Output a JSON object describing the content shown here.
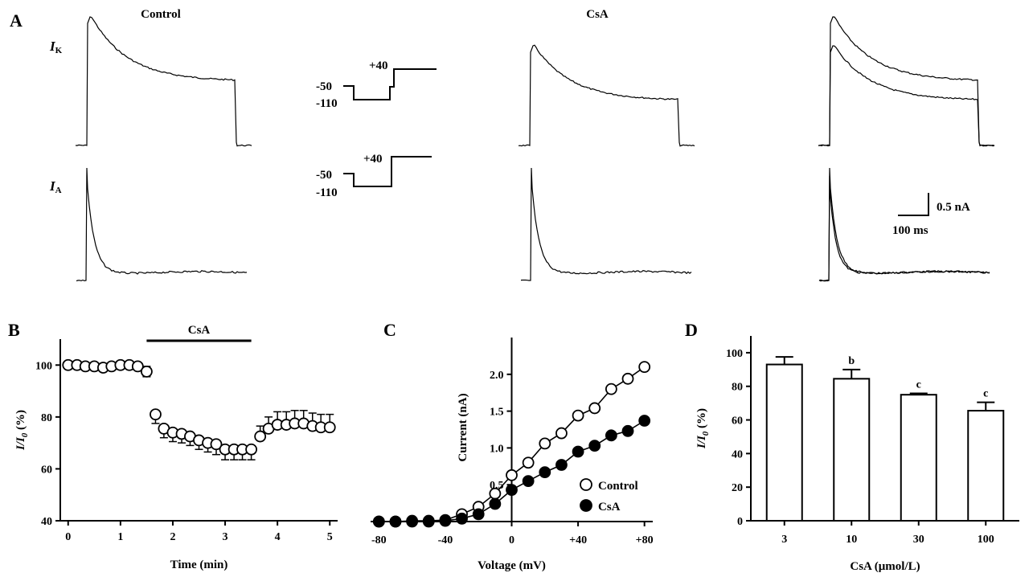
{
  "panels": {
    "A": {
      "letter": "A",
      "control_label": "Control",
      "drug_label": "CsA",
      "ik_label_main": "I",
      "ik_label_sub": "K",
      "ia_label_main": "I",
      "ia_label_sub": "A",
      "protocol_ik": {
        "hold": "-50",
        "pre": "-110",
        "test": "+40"
      },
      "protocol_ia": {
        "hold": "-50",
        "pre": "-110",
        "test": "+40"
      },
      "scale_current": "0.5 nA",
      "scale_time": "100 ms"
    },
    "B": {
      "letter": "B",
      "bar_label": "CsA"
    },
    "C": {
      "letter": "C"
    },
    "D": {
      "letter": "D"
    }
  },
  "chart_data": [
    {
      "panel": "B",
      "type": "scatter",
      "xlabel": "Time (min)",
      "ylabel_main": "I/I",
      "ylabel_sub": "0",
      "ylabel_unit": " (%)",
      "xlim": [
        -0.15,
        5.15
      ],
      "ylim": [
        40,
        110
      ],
      "xticks": [
        0,
        1,
        2,
        3,
        4,
        5
      ],
      "yticks": [
        40,
        60,
        80,
        100
      ],
      "drug_bar": {
        "label": "CsA",
        "start": 1.5,
        "end": 3.5
      },
      "series": [
        {
          "x": [
            0,
            0.17,
            0.33,
            0.5,
            0.67,
            0.83,
            1.0,
            1.17,
            1.33,
            1.5,
            1.67,
            1.83,
            2.0,
            2.17,
            2.33,
            2.5,
            2.67,
            2.83,
            3.0,
            3.17,
            3.33,
            3.5,
            3.67,
            3.83,
            4.0,
            4.17,
            4.33,
            4.5,
            4.67,
            4.83,
            5.0
          ],
          "y": [
            100,
            100,
            99.5,
            99.5,
            99,
            99.5,
            100,
            100,
            99.5,
            97.5,
            81,
            75.5,
            74,
            73.5,
            72.5,
            71,
            70,
            69.5,
            67.5,
            67.5,
            67.5,
            67.5,
            72.5,
            75.5,
            77,
            77,
            77.5,
            77.5,
            76.5,
            76,
            76
          ],
          "err": [
            1,
            1,
            1,
            1,
            1,
            1,
            1,
            1,
            1,
            2,
            3.5,
            3.5,
            3.5,
            3.5,
            3.5,
            3.5,
            3.5,
            4,
            4,
            4,
            4,
            4,
            4,
            4.5,
            5,
            5,
            5,
            5,
            5,
            5,
            5
          ]
        }
      ]
    },
    {
      "panel": "C",
      "type": "line",
      "xlabel": "Voltage (mV)",
      "ylabel": "Current (nA)",
      "xlim": [
        -85,
        85
      ],
      "ylim": [
        0,
        2.5
      ],
      "xticks": [
        {
          "v": -80,
          "label": "-80"
        },
        {
          "v": -40,
          "label": "-40"
        },
        {
          "v": 0,
          "label": "0"
        },
        {
          "v": 40,
          "label": "+40"
        },
        {
          "v": 80,
          "label": "+80"
        }
      ],
      "yticks": [
        {
          "v": 0.5,
          "label": "0.5"
        },
        {
          "v": 1.0,
          "label": "1.0"
        },
        {
          "v": 1.5,
          "label": "1.5"
        },
        {
          "v": 2.0,
          "label": "2.0"
        }
      ],
      "legend_position": "bottom-right",
      "series": [
        {
          "name": "Control",
          "marker": "open",
          "x": [
            -80,
            -70,
            -60,
            -50,
            -40,
            -30,
            -20,
            -10,
            0,
            10,
            20,
            30,
            40,
            50,
            60,
            70,
            80
          ],
          "y": [
            0,
            0,
            0.01,
            0.01,
            0.02,
            0.1,
            0.2,
            0.38,
            0.63,
            0.8,
            1.06,
            1.2,
            1.44,
            1.54,
            1.8,
            1.94,
            2.1
          ]
        },
        {
          "name": "CsA",
          "marker": "filled",
          "x": [
            -80,
            -70,
            -60,
            -50,
            -40,
            -30,
            -20,
            -10,
            0,
            10,
            20,
            30,
            40,
            50,
            60,
            70,
            80
          ],
          "y": [
            0,
            0,
            0,
            0,
            0.01,
            0.04,
            0.1,
            0.24,
            0.43,
            0.55,
            0.67,
            0.77,
            0.95,
            1.03,
            1.17,
            1.23,
            1.37
          ]
        }
      ]
    },
    {
      "panel": "D",
      "type": "bar",
      "xlabel": "CsA (μmol/L)",
      "ylabel_main": "I/I",
      "ylabel_sub": "0",
      "ylabel_unit": " (%)",
      "ylim": [
        0,
        110
      ],
      "yticks": [
        0,
        20,
        40,
        60,
        80,
        100
      ],
      "categories": [
        "3",
        "10",
        "30",
        "100"
      ],
      "values": [
        93,
        84.5,
        75,
        65.5
      ],
      "errors": [
        4.5,
        5.5,
        0.8,
        5
      ],
      "annotations": [
        "",
        "b",
        "c",
        "c"
      ]
    }
  ]
}
